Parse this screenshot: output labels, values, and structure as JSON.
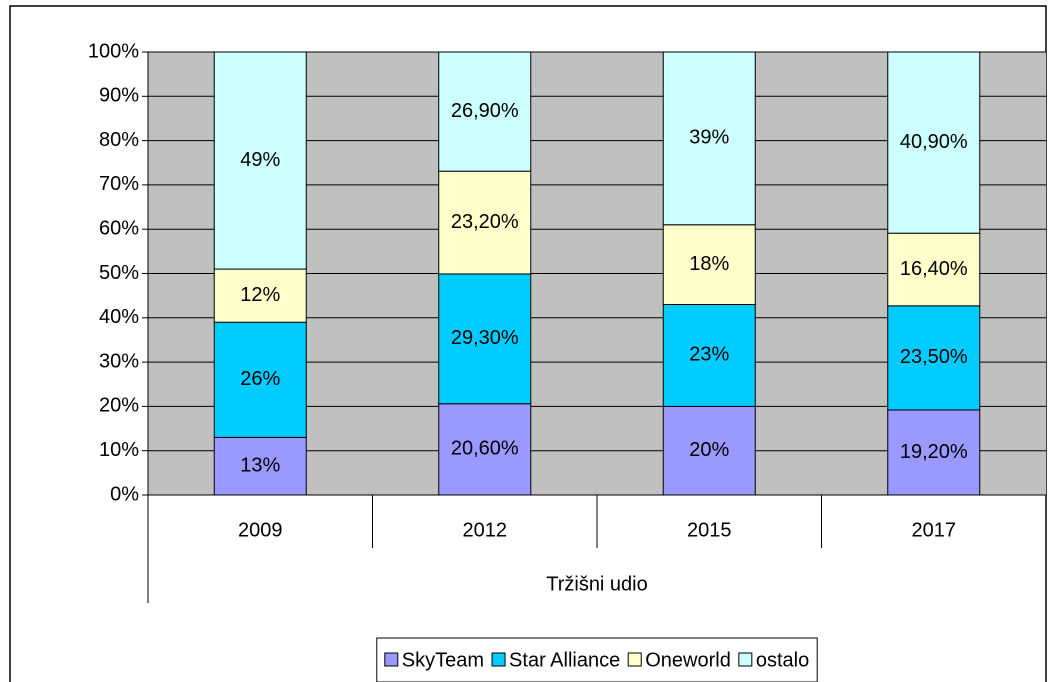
{
  "chart_data": {
    "type": "stacked_bar",
    "xlabel": "Tržišni udio",
    "categories": [
      "2009",
      "2012",
      "2015",
      "2017"
    ],
    "series": [
      {
        "name": "SkyTeam",
        "color": "#9999ff",
        "values": [
          13,
          20.6,
          20,
          19.2
        ],
        "value_labels": [
          "13%",
          "20,60%",
          "20%",
          "19,20%"
        ]
      },
      {
        "name": "Star Alliance",
        "color": "#00ccff",
        "values": [
          26,
          29.3,
          23,
          23.5
        ],
        "value_labels": [
          "26%",
          "29,30%",
          "23%",
          "23,50%"
        ]
      },
      {
        "name": "Oneworld",
        "color": "#ffffcc",
        "values": [
          12,
          23.2,
          18,
          16.4
        ],
        "value_labels": [
          "12%",
          "23,20%",
          "18%",
          "16,40%"
        ]
      },
      {
        "name": "ostalo",
        "color": "#ccffff",
        "values": [
          49,
          26.9,
          39,
          40.9
        ],
        "value_labels": [
          "49%",
          "26,90%",
          "39%",
          "40,90%"
        ]
      }
    ],
    "ylim": [
      0,
      100
    ],
    "yticks": [
      {
        "value": 0,
        "label": "0%"
      },
      {
        "value": 10,
        "label": "10%"
      },
      {
        "value": 20,
        "label": "20%"
      },
      {
        "value": 30,
        "label": "30%"
      },
      {
        "value": 40,
        "label": "40%"
      },
      {
        "value": 50,
        "label": "50%"
      },
      {
        "value": 60,
        "label": "60%"
      },
      {
        "value": 70,
        "label": "70%"
      },
      {
        "value": 80,
        "label": "80%"
      },
      {
        "value": 90,
        "label": "90%"
      },
      {
        "value": 100,
        "label": "100%"
      }
    ],
    "grid": true,
    "plot_background": "#c0c0c0",
    "legend": "bottom"
  }
}
